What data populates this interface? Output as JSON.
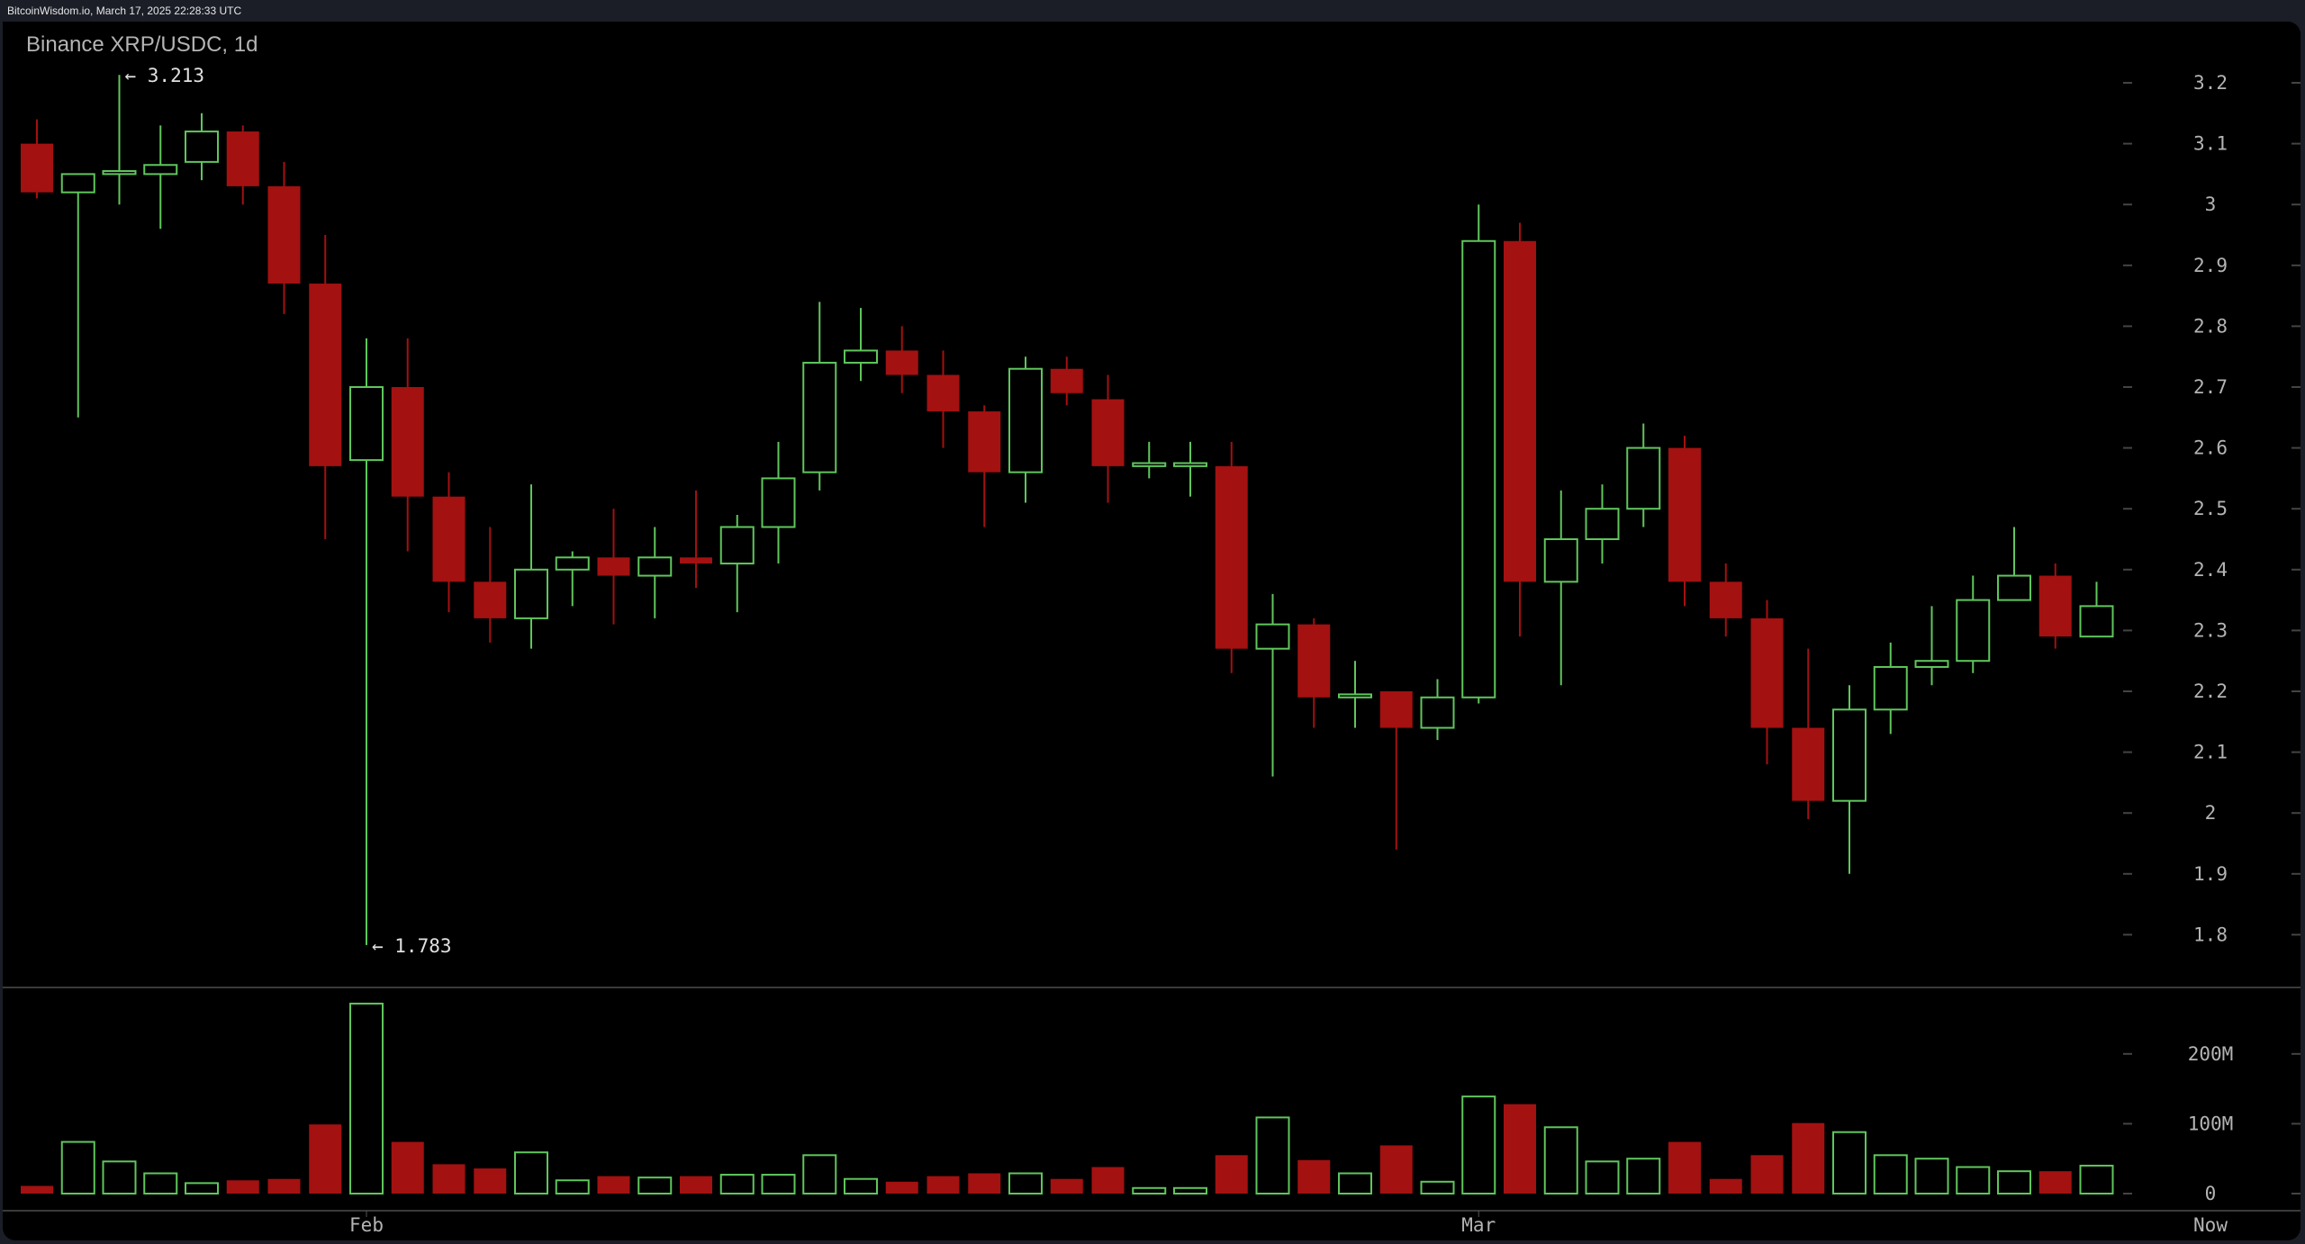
{
  "header": {
    "source_line": "BitcoinWisdom.io, March 17, 2025 22:28:33 UTC",
    "chart_title": "Binance XRP/USDC, 1d"
  },
  "colors": {
    "up": "#5fc65c",
    "down": "#a31111",
    "background": "#000000",
    "frame": "#1b1e27",
    "axis_text": "#b4b4b4",
    "separator": "#3a3a3a"
  },
  "annotations": {
    "high_label": "← 3.213",
    "low_label": "← 1.783"
  },
  "price_axis": {
    "ticks": [
      "3.2",
      "3.1",
      "3",
      "2.9",
      "2.8",
      "2.7",
      "2.6",
      "2.5",
      "2.4",
      "2.3",
      "2.2",
      "2.1",
      "2",
      "1.9",
      "1.8"
    ]
  },
  "volume_axis": {
    "ticks": [
      "200M",
      "100M",
      "0"
    ]
  },
  "time_axis": {
    "labels": [
      {
        "text": "Feb",
        "index": 8
      },
      {
        "text": "Mar",
        "index": 35
      },
      {
        "text": "Now",
        "index": 52.1
      }
    ]
  },
  "chart_data": {
    "type": "candlestick",
    "title": "Binance XRP/USDC, 1d",
    "xlabel": "",
    "ylabel": "",
    "ylim": [
      1.75,
      3.25
    ],
    "volume_ylim": [
      0,
      290
    ],
    "grid": false,
    "legend": "none",
    "price_ticks": [
      3.2,
      3.1,
      3.0,
      2.9,
      2.8,
      2.7,
      2.6,
      2.5,
      2.4,
      2.3,
      2.2,
      2.1,
      2.0,
      1.9,
      1.8
    ],
    "volume_ticks_M": [
      0,
      100,
      200
    ],
    "x_tick_labels": [
      "Feb",
      "Mar",
      "Now"
    ],
    "annotations": [
      {
        "text": "3.213",
        "type": "high",
        "index": 2
      },
      {
        "text": "1.783",
        "type": "low",
        "index": 8
      }
    ],
    "candles": [
      {
        "o": 3.1,
        "h": 3.14,
        "l": 3.01,
        "c": 3.02,
        "v": 11
      },
      {
        "o": 3.02,
        "h": 3.05,
        "l": 2.65,
        "c": 3.05,
        "v": 74
      },
      {
        "o": 3.05,
        "h": 3.213,
        "l": 3.0,
        "c": 3.055,
        "v": 46
      },
      {
        "o": 3.05,
        "h": 3.13,
        "l": 2.96,
        "c": 3.065,
        "v": 29
      },
      {
        "o": 3.07,
        "h": 3.15,
        "l": 3.04,
        "c": 3.12,
        "v": 15
      },
      {
        "o": 3.12,
        "h": 3.13,
        "l": 3.0,
        "c": 3.03,
        "v": 19
      },
      {
        "o": 3.03,
        "h": 3.07,
        "l": 2.82,
        "c": 2.87,
        "v": 21
      },
      {
        "o": 2.87,
        "h": 2.95,
        "l": 2.45,
        "c": 2.57,
        "v": 99
      },
      {
        "o": 2.58,
        "h": 2.78,
        "l": 1.783,
        "c": 2.7,
        "v": 272
      },
      {
        "o": 2.7,
        "h": 2.78,
        "l": 2.43,
        "c": 2.52,
        "v": 74
      },
      {
        "o": 2.52,
        "h": 2.56,
        "l": 2.33,
        "c": 2.38,
        "v": 42
      },
      {
        "o": 2.38,
        "h": 2.47,
        "l": 2.28,
        "c": 2.32,
        "v": 36
      },
      {
        "o": 2.32,
        "h": 2.54,
        "l": 2.27,
        "c": 2.4,
        "v": 59
      },
      {
        "o": 2.4,
        "h": 2.43,
        "l": 2.34,
        "c": 2.42,
        "v": 19
      },
      {
        "o": 2.42,
        "h": 2.5,
        "l": 2.31,
        "c": 2.39,
        "v": 25
      },
      {
        "o": 2.39,
        "h": 2.47,
        "l": 2.32,
        "c": 2.42,
        "v": 23
      },
      {
        "o": 2.42,
        "h": 2.53,
        "l": 2.37,
        "c": 2.41,
        "v": 25
      },
      {
        "o": 2.41,
        "h": 2.49,
        "l": 2.33,
        "c": 2.47,
        "v": 27
      },
      {
        "o": 2.47,
        "h": 2.61,
        "l": 2.41,
        "c": 2.55,
        "v": 27
      },
      {
        "o": 2.56,
        "h": 2.84,
        "l": 2.53,
        "c": 2.74,
        "v": 55
      },
      {
        "o": 2.74,
        "h": 2.83,
        "l": 2.71,
        "c": 2.76,
        "v": 21
      },
      {
        "o": 2.76,
        "h": 2.8,
        "l": 2.69,
        "c": 2.72,
        "v": 17
      },
      {
        "o": 2.72,
        "h": 2.76,
        "l": 2.6,
        "c": 2.66,
        "v": 25
      },
      {
        "o": 2.66,
        "h": 2.67,
        "l": 2.47,
        "c": 2.56,
        "v": 29
      },
      {
        "o": 2.56,
        "h": 2.75,
        "l": 2.51,
        "c": 2.73,
        "v": 29
      },
      {
        "o": 2.73,
        "h": 2.75,
        "l": 2.67,
        "c": 2.69,
        "v": 21
      },
      {
        "o": 2.68,
        "h": 2.72,
        "l": 2.51,
        "c": 2.57,
        "v": 38
      },
      {
        "o": 2.57,
        "h": 2.61,
        "l": 2.55,
        "c": 2.575,
        "v": 8
      },
      {
        "o": 2.57,
        "h": 2.61,
        "l": 2.52,
        "c": 2.575,
        "v": 8
      },
      {
        "o": 2.57,
        "h": 2.61,
        "l": 2.23,
        "c": 2.27,
        "v": 55
      },
      {
        "o": 2.27,
        "h": 2.36,
        "l": 2.06,
        "c": 2.31,
        "v": 109
      },
      {
        "o": 2.31,
        "h": 2.32,
        "l": 2.14,
        "c": 2.19,
        "v": 48
      },
      {
        "o": 2.19,
        "h": 2.25,
        "l": 2.14,
        "c": 2.195,
        "v": 29
      },
      {
        "o": 2.2,
        "h": 2.2,
        "l": 1.94,
        "c": 2.14,
        "v": 69
      },
      {
        "o": 2.14,
        "h": 2.22,
        "l": 2.12,
        "c": 2.19,
        "v": 17
      },
      {
        "o": 2.19,
        "h": 3.0,
        "l": 2.18,
        "c": 2.94,
        "v": 139
      },
      {
        "o": 2.94,
        "h": 2.97,
        "l": 2.29,
        "c": 2.38,
        "v": 128
      },
      {
        "o": 2.38,
        "h": 2.53,
        "l": 2.21,
        "c": 2.45,
        "v": 95
      },
      {
        "o": 2.45,
        "h": 2.54,
        "l": 2.41,
        "c": 2.5,
        "v": 46
      },
      {
        "o": 2.5,
        "h": 2.64,
        "l": 2.47,
        "c": 2.6,
        "v": 50
      },
      {
        "o": 2.6,
        "h": 2.62,
        "l": 2.34,
        "c": 2.38,
        "v": 74
      },
      {
        "o": 2.38,
        "h": 2.41,
        "l": 2.29,
        "c": 2.32,
        "v": 21
      },
      {
        "o": 2.32,
        "h": 2.35,
        "l": 2.08,
        "c": 2.14,
        "v": 55
      },
      {
        "o": 2.14,
        "h": 2.27,
        "l": 1.99,
        "c": 2.02,
        "v": 101
      },
      {
        "o": 2.02,
        "h": 2.21,
        "l": 1.9,
        "c": 2.17,
        "v": 88
      },
      {
        "o": 2.17,
        "h": 2.28,
        "l": 2.13,
        "c": 2.24,
        "v": 55
      },
      {
        "o": 2.24,
        "h": 2.34,
        "l": 2.21,
        "c": 2.25,
        "v": 50
      },
      {
        "o": 2.25,
        "h": 2.39,
        "l": 2.23,
        "c": 2.35,
        "v": 38
      },
      {
        "o": 2.35,
        "h": 2.47,
        "l": 2.35,
        "c": 2.39,
        "v": 32
      },
      {
        "o": 2.39,
        "h": 2.41,
        "l": 2.27,
        "c": 2.29,
        "v": 32
      },
      {
        "o": 2.29,
        "h": 2.38,
        "l": 2.29,
        "c": 2.34,
        "v": 40
      }
    ]
  }
}
